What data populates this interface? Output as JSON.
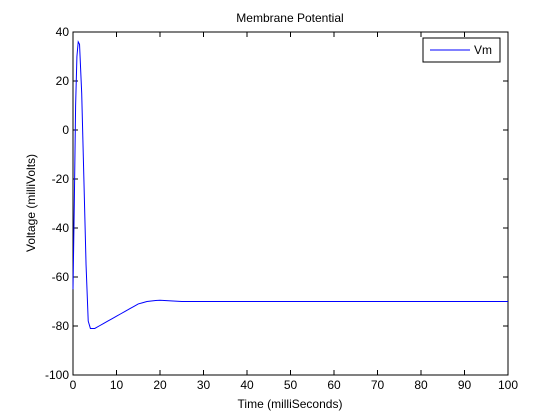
{
  "chart_data": {
    "type": "line",
    "title": "Membrane Potential",
    "xlabel": "Time (milliSeconds)",
    "ylabel": "Voltage (milliVolts)",
    "xlim": [
      0,
      100
    ],
    "ylim": [
      -100,
      40
    ],
    "x_ticks": [
      "0",
      "10",
      "20",
      "30",
      "40",
      "50",
      "60",
      "70",
      "80",
      "90",
      "100"
    ],
    "y_ticks": [
      "-100",
      "-80",
      "-60",
      "-40",
      "-20",
      "0",
      "20",
      "40"
    ],
    "grid": false,
    "legend_position": "top-right",
    "series": [
      {
        "name": "Vm",
        "color": "#0000ff",
        "x": [
          0,
          0.3,
          0.6,
          0.9,
          1.2,
          1.5,
          2.0,
          2.5,
          3.0,
          3.5,
          4.0,
          5.0,
          6.0,
          7.0,
          8.0,
          9.0,
          10.0,
          11.0,
          12.0,
          13.0,
          14.0,
          15.0,
          16.0,
          17.0,
          18.0,
          19.0,
          20.0,
          21.0,
          22.0,
          23.0,
          24.0,
          25.0,
          30.0,
          40.0,
          50.0,
          60.0,
          70.0,
          80.0,
          90.0,
          100.0
        ],
        "y": [
          -65,
          -30,
          10,
          30,
          36,
          35,
          15,
          -20,
          -55,
          -78,
          -81,
          -81,
          -80,
          -79,
          -78,
          -77,
          -76,
          -75,
          -74,
          -73,
          -72,
          -71,
          -70.5,
          -70,
          -69.8,
          -69.6,
          -69.5,
          -69.6,
          -69.7,
          -69.8,
          -69.9,
          -70,
          -70,
          -70,
          -70,
          -70,
          -70,
          -70,
          -70,
          -70
        ]
      }
    ]
  }
}
